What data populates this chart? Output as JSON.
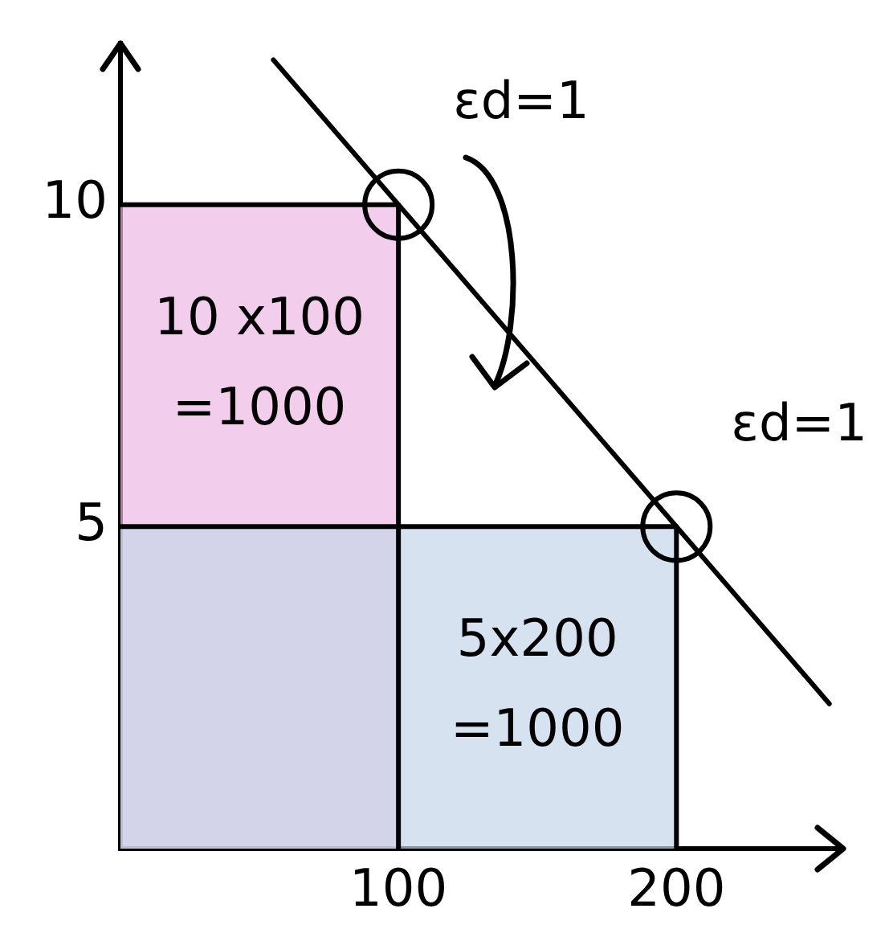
{
  "chart_data": {
    "type": "line",
    "xlim": [
      0,
      260
    ],
    "ylim": [
      0,
      12.5
    ],
    "xticks": [
      100,
      200
    ],
    "yticks": [
      5,
      10
    ],
    "series": [
      {
        "type": "area",
        "color": "#eeb8e4",
        "x": [
          0,
          100,
          100
        ],
        "values": [
          10,
          10,
          0
        ]
      },
      {
        "type": "area",
        "color": "#c4d6e8",
        "x": [
          0,
          200,
          200
        ],
        "values": [
          5,
          5,
          0
        ]
      },
      {
        "color": "#000000",
        "x": [
          55,
          255
        ],
        "values": [
          12.25,
          2.25
        ]
      },
      {
        "type": "scatter",
        "color": "#000000",
        "marker": "circle",
        "x": [
          100,
          200
        ],
        "values": [
          10,
          5
        ]
      }
    ],
    "annotations": [
      "10 x100 =1000",
      "5x200 =1000",
      {
        "text": "εd=1",
        "x": 100,
        "y": 10
      },
      {
        "text": "εd=1",
        "x": 200,
        "y": 5
      }
    ]
  }
}
